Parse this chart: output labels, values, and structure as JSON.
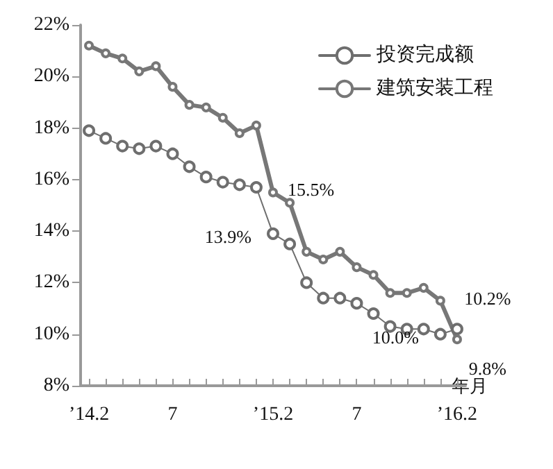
{
  "chart_data": {
    "type": "line",
    "categories": [
      "’14.2",
      null,
      null,
      null,
      null,
      "7",
      null,
      null,
      null,
      null,
      null,
      "’15.2",
      null,
      null,
      null,
      null,
      "7",
      null,
      null,
      null,
      null,
      null,
      "’16.2"
    ],
    "series": [
      {
        "name": "投资完成额",
        "color": "#6e6e6e",
        "values": [
          17.9,
          17.6,
          17.3,
          17.2,
          17.3,
          17.0,
          16.5,
          16.1,
          15.9,
          15.8,
          15.7,
          13.9,
          13.5,
          12.0,
          11.4,
          11.4,
          11.2,
          10.8,
          10.3,
          10.2,
          10.2,
          10.0,
          10.2
        ],
        "value_labels": [
          null,
          null,
          null,
          null,
          null,
          null,
          null,
          null,
          null,
          null,
          null,
          "13.9%",
          null,
          null,
          null,
          null,
          null,
          null,
          null,
          null,
          null,
          "10.0%",
          "10.2%"
        ]
      },
      {
        "name": "建筑安装工程",
        "color": "#777777",
        "values": [
          21.2,
          20.9,
          20.7,
          20.2,
          20.4,
          19.6,
          18.9,
          18.8,
          18.4,
          17.8,
          18.1,
          15.5,
          15.1,
          13.2,
          12.9,
          13.2,
          12.6,
          12.3,
          11.6,
          11.6,
          11.8,
          11.3,
          9.8
        ],
        "value_labels": [
          null,
          null,
          null,
          null,
          null,
          null,
          null,
          null,
          null,
          null,
          null,
          "15.5%",
          null,
          null,
          null,
          null,
          null,
          null,
          null,
          null,
          null,
          null,
          "9.8%"
        ]
      }
    ],
    "xlabel": "年月",
    "ylim": [
      8,
      22
    ],
    "yticks": [
      {
        "value": 8,
        "label": "8%"
      },
      {
        "value": 10,
        "label": "10%"
      },
      {
        "value": 12,
        "label": "12%"
      },
      {
        "value": 14,
        "label": "14%"
      },
      {
        "value": 16,
        "label": "16%"
      },
      {
        "value": 18,
        "label": "18%"
      },
      {
        "value": 20,
        "label": "20%"
      },
      {
        "value": 22,
        "label": "22%"
      }
    ],
    "grid": false,
    "legend": "top right",
    "marker": "circle",
    "line_style": "solid"
  }
}
